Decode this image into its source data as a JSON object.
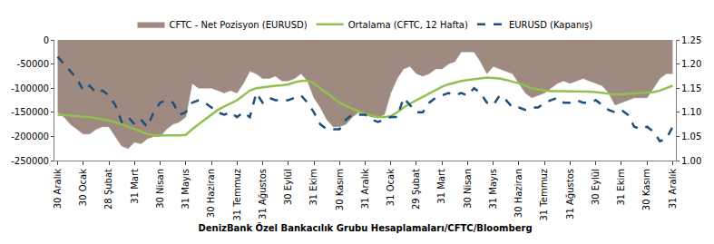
{
  "chart_data": {
    "type": "line",
    "x_label": "DenizBank Özel Bankacılık Grubu Hesaplamaları/CFTC/Bloomberg",
    "legend": "top",
    "grid": false,
    "categories": [
      "30 Aralık",
      null,
      null,
      null,
      "30 Ocak",
      null,
      null,
      null,
      "28 Şubat",
      null,
      null,
      null,
      "31 Mart",
      null,
      null,
      null,
      "30 Nisan",
      null,
      null,
      null,
      "31 Mayıs",
      null,
      null,
      null,
      "30 Haziran",
      null,
      null,
      null,
      "31 Temmuz",
      null,
      null,
      null,
      "31 Ağustos",
      null,
      null,
      null,
      "30 Eylül",
      null,
      null,
      null,
      "31 Ekim",
      null,
      null,
      null,
      "30 Kasım",
      null,
      null,
      null,
      "31 Aralık",
      null,
      null,
      null,
      "31 Ocak",
      null,
      null,
      null,
      "29 Şubat",
      null,
      null,
      null,
      "31 Mart",
      null,
      null,
      null,
      "30 Nisan",
      null,
      null,
      null,
      "31 Mayıs",
      null,
      null,
      null,
      "30 Haziran",
      null,
      null,
      null,
      "31 Temmuz",
      null,
      null,
      null,
      "31 Ağustos",
      null,
      null,
      null,
      "30 Eylül",
      null,
      null,
      null,
      "31 Ekim",
      null,
      null,
      null,
      "30 Kasım",
      null,
      null,
      null,
      "31 Aralık"
    ],
    "ylim": [
      -250000,
      0
    ],
    "yticks": [
      -250000,
      -200000,
      -150000,
      -100000,
      -50000,
      0
    ],
    "y2lim": [
      1.0,
      1.25
    ],
    "y2ticks": [
      {
        "value": 1.0,
        "label": "1.00"
      },
      {
        "value": 1.05,
        "label": "1.05"
      },
      {
        "value": 1.1,
        "label": "1.10"
      },
      {
        "value": 1.15,
        "label": "1.15"
      },
      {
        "value": 1.2,
        "label": "1.20"
      },
      {
        "value": 1.25,
        "label": "1.25"
      }
    ],
    "series": [
      {
        "name": "CFTC - Net Pozisyon (EURUSD)",
        "type": "area",
        "color": "#9e8a80",
        "axis": "y",
        "values": [
          -150000,
          -160000,
          -175000,
          -185000,
          -195000,
          -195000,
          -185000,
          -180000,
          -180000,
          -200000,
          -220000,
          -225000,
          -212000,
          -215000,
          -205000,
          -200000,
          -200000,
          -185000,
          -175000,
          -170000,
          -160000,
          -90000,
          -100000,
          -100000,
          -100000,
          -105000,
          -110000,
          -105000,
          -110000,
          -90000,
          -65000,
          -70000,
          -80000,
          -80000,
          -75000,
          -85000,
          -85000,
          -80000,
          -70000,
          -85000,
          -120000,
          -140000,
          -165000,
          -180000,
          -180000,
          -175000,
          -160000,
          -150000,
          -155000,
          -160000,
          -160000,
          -155000,
          -110000,
          -80000,
          -60000,
          -55000,
          -70000,
          -75000,
          -70000,
          -60000,
          -60000,
          -50000,
          -45000,
          -25000,
          -25000,
          -25000,
          -45000,
          -70000,
          -55000,
          -60000,
          -65000,
          -70000,
          -90000,
          -110000,
          -120000,
          -115000,
          -110000,
          -100000,
          -90000,
          -85000,
          -90000,
          -85000,
          -80000,
          -85000,
          -90000,
          -95000,
          -110000,
          -135000,
          -130000,
          -125000,
          -120000,
          -120000,
          -120000,
          -100000,
          -80000,
          -70000,
          -70000
        ]
      },
      {
        "name": "Ortalama (CFTC, 12 Hafta)",
        "type": "line",
        "color": "#92c050",
        "line_style": "solid",
        "axis": "y",
        "values": [
          -155000,
          -156000,
          -157000,
          -158000,
          -158000,
          -160000,
          -162000,
          -165000,
          -167000,
          -170000,
          -175000,
          -180000,
          -185000,
          -190000,
          -195000,
          -198000,
          -198000,
          -199000,
          -199000,
          -198000,
          -197000,
          -185000,
          -175000,
          -165000,
          -155000,
          -145000,
          -138000,
          -132000,
          -125000,
          -115000,
          -105000,
          -100000,
          -98000,
          -97000,
          -95000,
          -94000,
          -92000,
          -88000,
          -85000,
          -84000,
          -90000,
          -100000,
          -110000,
          -120000,
          -130000,
          -137000,
          -143000,
          -148000,
          -153000,
          -157000,
          -160000,
          -160000,
          -158000,
          -150000,
          -140000,
          -132000,
          -125000,
          -118000,
          -110000,
          -103000,
          -97000,
          -92000,
          -88000,
          -85000,
          -83000,
          -81000,
          -79000,
          -78000,
          -79000,
          -80000,
          -83000,
          -86000,
          -90000,
          -95000,
          -100000,
          -103000,
          -105000,
          -106000,
          -106000,
          -106000,
          -106000,
          -107000,
          -107000,
          -107000,
          -108000,
          -110000,
          -112000,
          -113000,
          -113000,
          -112000,
          -111000,
          -110000,
          -110000,
          -108000,
          -105000,
          -100000,
          -95000
        ]
      },
      {
        "name": "EURUSD (Kapanış)",
        "type": "line",
        "color": "#1f4e79",
        "line_style": "dashed",
        "axis": "y2",
        "values": [
          1.215,
          1.2,
          1.185,
          1.17,
          1.145,
          1.155,
          1.14,
          1.145,
          1.135,
          1.115,
          1.08,
          1.09,
          1.075,
          1.085,
          1.07,
          1.1,
          1.12,
          1.125,
          1.12,
          1.095,
          1.1,
          1.12,
          1.125,
          1.12,
          1.11,
          1.1,
          1.095,
          1.1,
          1.09,
          1.1,
          1.09,
          1.14,
          1.12,
          1.13,
          1.125,
          1.125,
          1.125,
          1.13,
          1.135,
          1.12,
          1.1,
          1.075,
          1.065,
          1.065,
          1.065,
          1.085,
          1.095,
          1.095,
          1.095,
          1.085,
          1.08,
          1.085,
          1.09,
          1.09,
          1.13,
          1.115,
          1.1,
          1.1,
          1.12,
          1.13,
          1.135,
          1.14,
          1.135,
          1.14,
          1.135,
          1.15,
          1.14,
          1.12,
          1.115,
          1.135,
          1.125,
          1.11,
          1.11,
          1.105,
          1.11,
          1.11,
          1.12,
          1.125,
          1.13,
          1.12,
          1.12,
          1.125,
          1.12,
          1.12,
          1.125,
          1.115,
          1.105,
          1.1,
          1.105,
          1.095,
          1.07,
          1.065,
          1.07,
          1.06,
          1.04,
          1.045,
          1.07
        ]
      }
    ]
  }
}
